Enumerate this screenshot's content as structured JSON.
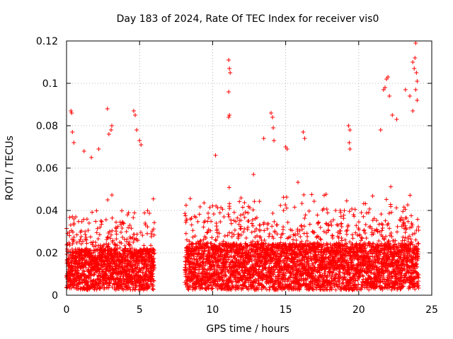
{
  "chart_data": {
    "type": "scatter",
    "title": "Day 183 of 2024, Rate Of TEC Index for receiver vis0",
    "xlabel": "GPS time / hours",
    "ylabel": "ROTI / TECUs",
    "xlim": [
      0,
      25
    ],
    "ylim": [
      0,
      0.12
    ],
    "xticks": [
      "0",
      "5",
      "10",
      "15",
      "20",
      "25"
    ],
    "yticks": [
      "0",
      "0.02",
      "0.04",
      "0.06",
      "0.08",
      "0.1",
      "0.12"
    ],
    "grid": true,
    "marker": "+",
    "color": "#ff0000",
    "series": [
      {
        "name": "ROTI",
        "segments": [
          {
            "x_start": 0.0,
            "x_end": 6.0,
            "base": 0.01,
            "typical_max": 0.035
          },
          {
            "x_start": 8.1,
            "x_end": 24.1,
            "base": 0.01,
            "typical_max": 0.04
          }
        ],
        "data_gap_hours": [
          6.0,
          8.1
        ],
        "points": [
          [
            0.3,
            0.087
          ],
          [
            0.35,
            0.086
          ],
          [
            0.4,
            0.077
          ],
          [
            0.5,
            0.072
          ],
          [
            1.2,
            0.068
          ],
          [
            1.7,
            0.065
          ],
          [
            2.2,
            0.069
          ],
          [
            2.8,
            0.088
          ],
          [
            2.9,
            0.076
          ],
          [
            3.1,
            0.08
          ],
          [
            3.05,
            0.078
          ],
          [
            4.6,
            0.087
          ],
          [
            4.7,
            0.085
          ],
          [
            4.8,
            0.078
          ],
          [
            5.0,
            0.073
          ],
          [
            5.1,
            0.071
          ],
          [
            10.2,
            0.066
          ],
          [
            11.1,
            0.111
          ],
          [
            11.15,
            0.107
          ],
          [
            11.2,
            0.105
          ],
          [
            11.1,
            0.096
          ],
          [
            11.15,
            0.085
          ],
          [
            11.1,
            0.084
          ],
          [
            12.8,
            0.057
          ],
          [
            13.5,
            0.074
          ],
          [
            14.0,
            0.086
          ],
          [
            14.1,
            0.084
          ],
          [
            14.15,
            0.079
          ],
          [
            14.2,
            0.073
          ],
          [
            15.0,
            0.07
          ],
          [
            15.1,
            0.069
          ],
          [
            16.2,
            0.077
          ],
          [
            16.3,
            0.074
          ],
          [
            19.3,
            0.08
          ],
          [
            19.4,
            0.078
          ],
          [
            19.35,
            0.072
          ],
          [
            19.4,
            0.069
          ],
          [
            21.5,
            0.078
          ],
          [
            21.7,
            0.097
          ],
          [
            21.8,
            0.098
          ],
          [
            21.9,
            0.102
          ],
          [
            22.0,
            0.103
          ],
          [
            22.1,
            0.094
          ],
          [
            22.3,
            0.085
          ],
          [
            22.6,
            0.083
          ],
          [
            23.2,
            0.097
          ],
          [
            23.5,
            0.094
          ],
          [
            23.7,
            0.11
          ],
          [
            23.8,
            0.107
          ],
          [
            23.85,
            0.112
          ],
          [
            23.9,
            0.119
          ],
          [
            23.95,
            0.105
          ],
          [
            24.0,
            0.101
          ],
          [
            23.9,
            0.097
          ],
          [
            24.0,
            0.092
          ],
          [
            23.7,
            0.087
          ]
        ]
      }
    ]
  }
}
